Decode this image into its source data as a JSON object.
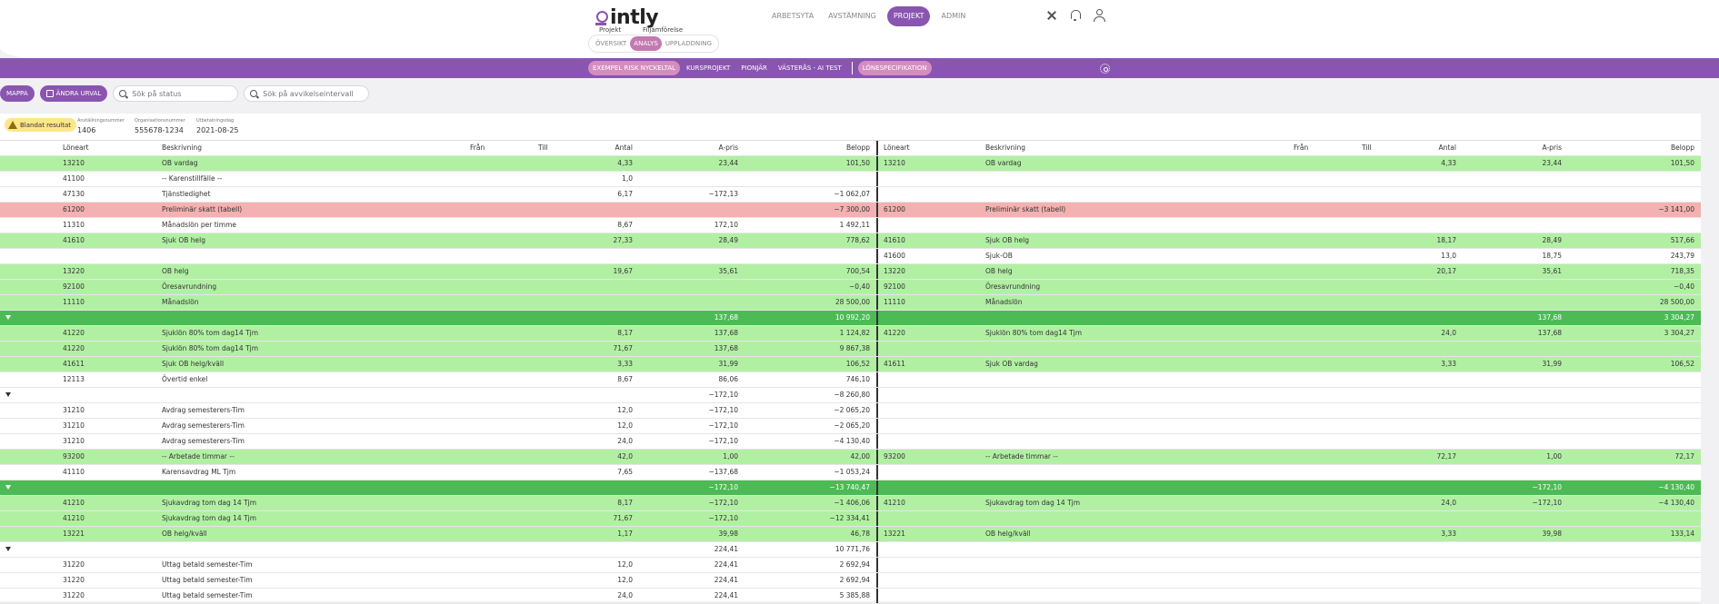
{
  "app": {
    "logo_text": "intly",
    "sub_labels": [
      "Projekt",
      "Filjämförelse"
    ],
    "view_tabs": [
      {
        "label": "ÖVERSIKT",
        "active": false
      },
      {
        "label": "ANALYS",
        "active": true
      },
      {
        "label": "UPPLADDNING",
        "active": false
      }
    ],
    "nav": [
      {
        "label": "ARBETSYTA",
        "active": false
      },
      {
        "label": "AVSTÄMNING",
        "active": false
      },
      {
        "label": "PROJEKT",
        "active": true
      },
      {
        "label": "ADMIN",
        "active": false
      }
    ],
    "icons": [
      "tools-icon",
      "bell-icon",
      "user-icon"
    ],
    "accent": "#8a55b0"
  },
  "project_tabs": [
    {
      "label": "EXEMPEL RISK NYCKELTAL",
      "active": true
    },
    {
      "label": "KURSPROJEKT",
      "active": false
    },
    {
      "label": "PIONJÄR",
      "active": false
    },
    {
      "label": "VÄSTERÅS - AI TEST",
      "active": false
    },
    {
      "label": "LÖNESPECIFIKATION",
      "active": true
    }
  ],
  "filters": {
    "folder_label": "MAPPA",
    "change_label": "ÄNDRA URVAL",
    "status_placeholder": "Sök på status",
    "deviation_placeholder": "Sök på avvikelseintervall"
  },
  "info": {
    "badge": "Blandat resultat",
    "fields": [
      {
        "label": "Anställningsnummer",
        "value": "1406"
      },
      {
        "label": "Organisationsnummer",
        "value": "555678-1234"
      },
      {
        "label": "Utbetalningsdag",
        "value": "2021-08-25"
      }
    ]
  },
  "colors": {
    "green": "#b1f0a3",
    "red": "#f3b1b1",
    "group": "#4cbb55"
  },
  "headers": {
    "left": [
      "Löneart",
      "Beskrivning",
      "Från",
      "Till",
      "Antal",
      "A-pris",
      "Belopp"
    ],
    "right": [
      "Löneart",
      "Beskrivning",
      "Från",
      "Till",
      "Antal",
      "A-pris",
      "Belopp"
    ]
  },
  "rows": [
    {
      "type": "green",
      "l": [
        "13210",
        "OB vardag",
        "",
        "",
        "4,33",
        "23,44",
        "101,50"
      ],
      "r": [
        "13210",
        "OB vardag",
        "",
        "",
        "4,33",
        "23,44",
        "101,50"
      ]
    },
    {
      "type": "plain",
      "l": [
        "41100",
        "-- Karenstillfälle --",
        "",
        "",
        "1,0",
        "",
        ""
      ],
      "r": [
        "",
        "",
        "",
        "",
        "",
        "",
        ""
      ]
    },
    {
      "type": "plain",
      "l": [
        "47130",
        "Tjänstledighet",
        "",
        "",
        "6,17",
        "−172,13",
        "−1 062,07"
      ],
      "r": [
        "",
        "",
        "",
        "",
        "",
        "",
        ""
      ]
    },
    {
      "type": "red",
      "l": [
        "61200",
        "Preliminär skatt (tabell)",
        "",
        "",
        "",
        "",
        "−7 300,00"
      ],
      "r": [
        "61200",
        "Preliminär skatt (tabell)",
        "",
        "",
        "",
        "",
        "−3 141,00"
      ]
    },
    {
      "type": "plain",
      "l": [
        "11310",
        "Månadslön per timme",
        "",
        "",
        "8,67",
        "172,10",
        "1 492,11"
      ],
      "r": [
        "",
        "",
        "",
        "",
        "",
        "",
        ""
      ]
    },
    {
      "type": "green",
      "l": [
        "41610",
        "Sjuk OB helg",
        "",
        "",
        "27,33",
        "28,49",
        "778,62"
      ],
      "r": [
        "41610",
        "Sjuk OB helg",
        "",
        "",
        "18,17",
        "28,49",
        "517,66"
      ]
    },
    {
      "type": "plain",
      "l": [
        "",
        "",
        "",
        "",
        "",
        "",
        ""
      ],
      "r": [
        "41600",
        "Sjuk-OB",
        "",
        "",
        "13,0",
        "18,75",
        "243,79"
      ]
    },
    {
      "type": "green",
      "l": [
        "13220",
        "OB helg",
        "",
        "",
        "19,67",
        "35,61",
        "700,54"
      ],
      "r": [
        "13220",
        "OB helg",
        "",
        "",
        "20,17",
        "35,61",
        "718,35"
      ]
    },
    {
      "type": "green",
      "l": [
        "92100",
        "Öresavrundning",
        "",
        "",
        "",
        "",
        "−0,40"
      ],
      "r": [
        "92100",
        "Öresavrundning",
        "",
        "",
        "",
        "",
        "−0,40"
      ]
    },
    {
      "type": "green",
      "l": [
        "11110",
        "Månadslön",
        "",
        "",
        "",
        "",
        "28 500,00"
      ],
      "r": [
        "11110",
        "Månadslön",
        "",
        "",
        "",
        "",
        "28 500,00"
      ]
    },
    {
      "type": "group",
      "l": [
        "",
        "",
        "",
        "",
        "",
        "137,68",
        "10 992,20"
      ],
      "r": [
        "",
        "",
        "",
        "",
        "",
        "137,68",
        "3 304,27"
      ]
    },
    {
      "type": "green",
      "l": [
        "41220",
        "Sjuklön 80% tom dag14 Tjm",
        "",
        "",
        "8,17",
        "137,68",
        "1 124,82"
      ],
      "r": [
        "41220",
        "Sjuklön 80% tom dag14 Tjm",
        "",
        "",
        "24,0",
        "137,68",
        "3 304,27"
      ]
    },
    {
      "type": "green",
      "l": [
        "41220",
        "Sjuklön 80% tom dag14 Tjm",
        "",
        "",
        "71,67",
        "137,68",
        "9 867,38"
      ],
      "r": [
        "",
        "",
        "",
        "",
        "",
        "",
        ""
      ]
    },
    {
      "type": "green",
      "l": [
        "41611",
        "Sjuk OB helg/kväll",
        "",
        "",
        "3,33",
        "31,99",
        "106,52"
      ],
      "r": [
        "41611",
        "Sjuk OB vardag",
        "",
        "",
        "3,33",
        "31,99",
        "106,52"
      ]
    },
    {
      "type": "plain",
      "l": [
        "12113",
        "Övertid enkel",
        "",
        "",
        "8,67",
        "86,06",
        "746,10"
      ],
      "r": [
        "",
        "",
        "",
        "",
        "",
        "",
        ""
      ]
    },
    {
      "type": "subhead",
      "l": [
        "",
        "",
        "",
        "",
        "",
        "−172,10",
        "−8 260,80"
      ],
      "r": [
        "",
        "",
        "",
        "",
        "",
        "",
        ""
      ]
    },
    {
      "type": "plain",
      "l": [
        "31210",
        "Avdrag semesterers-Tim",
        "",
        "",
        "12,0",
        "−172,10",
        "−2 065,20"
      ],
      "r": [
        "",
        "",
        "",
        "",
        "",
        "",
        ""
      ]
    },
    {
      "type": "plain",
      "l": [
        "31210",
        "Avdrag semesterers-Tim",
        "",
        "",
        "12,0",
        "−172,10",
        "−2 065,20"
      ],
      "r": [
        "",
        "",
        "",
        "",
        "",
        "",
        ""
      ]
    },
    {
      "type": "plain",
      "l": [
        "31210",
        "Avdrag semesterers-Tim",
        "",
        "",
        "24,0",
        "−172,10",
        "−4 130,40"
      ],
      "r": [
        "",
        "",
        "",
        "",
        "",
        "",
        ""
      ]
    },
    {
      "type": "green",
      "l": [
        "93200",
        "-- Arbetade timmar --",
        "",
        "",
        "42,0",
        "1,00",
        "42,00"
      ],
      "r": [
        "93200",
        "-- Arbetade timmar --",
        "",
        "",
        "72,17",
        "1,00",
        "72,17"
      ]
    },
    {
      "type": "plain",
      "l": [
        "41110",
        "Karensavdrag ML Tjm",
        "",
        "",
        "7,65",
        "−137,68",
        "−1 053,24"
      ],
      "r": [
        "",
        "",
        "",
        "",
        "",
        "",
        ""
      ]
    },
    {
      "type": "group",
      "l": [
        "",
        "",
        "",
        "",
        "",
        "−172,10",
        "−13 740,47"
      ],
      "r": [
        "",
        "",
        "",
        "",
        "",
        "−172,10",
        "−4 130,40"
      ]
    },
    {
      "type": "green",
      "l": [
        "41210",
        "Sjukavdrag tom dag 14 Tjm",
        "",
        "",
        "8,17",
        "−172,10",
        "−1 406,06"
      ],
      "r": [
        "41210",
        "Sjukavdrag tom dag 14 Tjm",
        "",
        "",
        "24,0",
        "−172,10",
        "−4 130,40"
      ]
    },
    {
      "type": "green",
      "l": [
        "41210",
        "Sjukavdrag tom dag 14 Tjm",
        "",
        "",
        "71,67",
        "−172,10",
        "−12 334,41"
      ],
      "r": [
        "",
        "",
        "",
        "",
        "",
        "",
        ""
      ]
    },
    {
      "type": "green",
      "l": [
        "13221",
        "OB helg/kväll",
        "",
        "",
        "1,17",
        "39,98",
        "46,78"
      ],
      "r": [
        "13221",
        "OB helg/kväll",
        "",
        "",
        "3,33",
        "39,98",
        "133,14"
      ]
    },
    {
      "type": "subhead",
      "l": [
        "",
        "",
        "",
        "",
        "",
        "224,41",
        "10 771,76"
      ],
      "r": [
        "",
        "",
        "",
        "",
        "",
        "",
        ""
      ]
    },
    {
      "type": "plain",
      "l": [
        "31220",
        "Uttag betald semester-Tim",
        "",
        "",
        "12,0",
        "224,41",
        "2 692,94"
      ],
      "r": [
        "",
        "",
        "",
        "",
        "",
        "",
        ""
      ]
    },
    {
      "type": "plain",
      "l": [
        "31220",
        "Uttag betald semester-Tim",
        "",
        "",
        "12,0",
        "224,41",
        "2 692,94"
      ],
      "r": [
        "",
        "",
        "",
        "",
        "",
        "",
        ""
      ]
    },
    {
      "type": "plain",
      "l": [
        "31220",
        "Uttag betald semester-Tim",
        "",
        "",
        "24,0",
        "224,41",
        "5 385,88"
      ],
      "r": [
        "",
        "",
        "",
        "",
        "",
        "",
        ""
      ]
    }
  ]
}
